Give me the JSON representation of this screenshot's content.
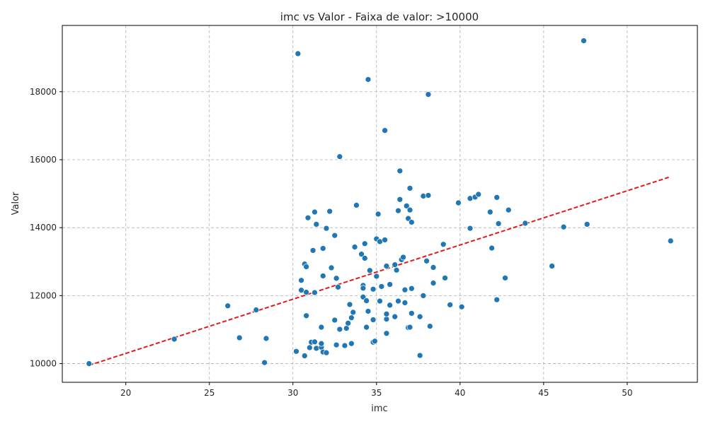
{
  "chart_data": {
    "type": "scatter",
    "title": "imc vs Valor - Faixa de valor: >10000",
    "xlabel": "imc",
    "ylabel": "Valor",
    "xlim": [
      16.2,
      54.2
    ],
    "ylim": [
      9450,
      19950
    ],
    "xticks": [
      20,
      25,
      30,
      35,
      40,
      45,
      50
    ],
    "yticks": [
      10000,
      12000,
      14000,
      16000,
      18000
    ],
    "grid": true,
    "point_color": "#1f77b4",
    "trend_color": "#e31a1c",
    "trendline": {
      "x": [
        17.8,
        52.6
      ],
      "y": [
        9950,
        15500
      ],
      "style": "dashed"
    },
    "points": [
      [
        17.8,
        10000
      ],
      [
        22.9,
        10720
      ],
      [
        26.1,
        11700
      ],
      [
        26.8,
        10760
      ],
      [
        27.8,
        11580
      ],
      [
        28.3,
        10030
      ],
      [
        28.4,
        10740
      ],
      [
        30.2,
        10360
      ],
      [
        30.3,
        19120
      ],
      [
        30.5,
        12450
      ],
      [
        30.5,
        12160
      ],
      [
        30.7,
        12930
      ],
      [
        30.7,
        10230
      ],
      [
        30.8,
        12850
      ],
      [
        30.8,
        11410
      ],
      [
        30.8,
        12100
      ],
      [
        30.9,
        14290
      ],
      [
        31.0,
        10470
      ],
      [
        31.1,
        10630
      ],
      [
        31.2,
        13330
      ],
      [
        31.3,
        14460
      ],
      [
        31.3,
        10640
      ],
      [
        31.3,
        12090
      ],
      [
        31.4,
        14100
      ],
      [
        31.4,
        10450
      ],
      [
        31.7,
        10480
      ],
      [
        31.7,
        11070
      ],
      [
        31.7,
        10590
      ],
      [
        31.8,
        12580
      ],
      [
        31.8,
        13390
      ],
      [
        31.8,
        10340
      ],
      [
        32.0,
        10320
      ],
      [
        32.0,
        13980
      ],
      [
        32.2,
        14480
      ],
      [
        32.3,
        12820
      ],
      [
        32.5,
        13770
      ],
      [
        32.5,
        11280
      ],
      [
        32.6,
        12510
      ],
      [
        32.6,
        10550
      ],
      [
        32.7,
        12250
      ],
      [
        32.8,
        16090
      ],
      [
        32.8,
        11010
      ],
      [
        33.1,
        10530
      ],
      [
        33.2,
        11040
      ],
      [
        33.3,
        11190
      ],
      [
        33.4,
        11740
      ],
      [
        33.5,
        10590
      ],
      [
        33.5,
        11350
      ],
      [
        33.6,
        11510
      ],
      [
        33.7,
        13430
      ],
      [
        33.8,
        14660
      ],
      [
        34.1,
        13220
      ],
      [
        34.2,
        12300
      ],
      [
        34.2,
        12220
      ],
      [
        34.2,
        11960
      ],
      [
        34.3,
        13100
      ],
      [
        34.3,
        13530
      ],
      [
        34.4,
        11850
      ],
      [
        34.4,
        11070
      ],
      [
        34.5,
        11540
      ],
      [
        34.5,
        18360
      ],
      [
        34.6,
        12740
      ],
      [
        34.8,
        12190
      ],
      [
        34.8,
        11290
      ],
      [
        34.8,
        10630
      ],
      [
        34.9,
        10660
      ],
      [
        35.0,
        12570
      ],
      [
        35.0,
        13670
      ],
      [
        35.1,
        14400
      ],
      [
        35.2,
        13590
      ],
      [
        35.2,
        11840
      ],
      [
        35.3,
        12270
      ],
      [
        35.5,
        13640
      ],
      [
        35.5,
        16860
      ],
      [
        35.6,
        12870
      ],
      [
        35.6,
        11310
      ],
      [
        35.6,
        11460
      ],
      [
        35.6,
        10890
      ],
      [
        35.8,
        11720
      ],
      [
        35.8,
        12330
      ],
      [
        36.1,
        12910
      ],
      [
        36.1,
        11380
      ],
      [
        36.2,
        12750
      ],
      [
        36.3,
        11840
      ],
      [
        36.3,
        14500
      ],
      [
        36.4,
        14830
      ],
      [
        36.4,
        15670
      ],
      [
        36.5,
        13060
      ],
      [
        36.6,
        13130
      ],
      [
        36.7,
        12170
      ],
      [
        36.7,
        11790
      ],
      [
        36.8,
        14640
      ],
      [
        36.9,
        14270
      ],
      [
        36.9,
        11060
      ],
      [
        37.0,
        14520
      ],
      [
        37.0,
        15160
      ],
      [
        37.0,
        11070
      ],
      [
        37.1,
        11480
      ],
      [
        37.1,
        12210
      ],
      [
        37.1,
        14160
      ],
      [
        37.6,
        10240
      ],
      [
        37.6,
        11380
      ],
      [
        37.8,
        12000
      ],
      [
        37.8,
        14930
      ],
      [
        38.0,
        13020
      ],
      [
        38.1,
        14950
      ],
      [
        38.1,
        17920
      ],
      [
        38.2,
        11100
      ],
      [
        38.4,
        12830
      ],
      [
        38.4,
        12370
      ],
      [
        39.0,
        13510
      ],
      [
        39.1,
        12520
      ],
      [
        39.4,
        11730
      ],
      [
        39.9,
        14730
      ],
      [
        40.1,
        11670
      ],
      [
        40.6,
        13980
      ],
      [
        40.6,
        14860
      ],
      [
        40.9,
        14900
      ],
      [
        41.1,
        14980
      ],
      [
        41.8,
        14460
      ],
      [
        41.9,
        13400
      ],
      [
        42.2,
        11880
      ],
      [
        42.2,
        14890
      ],
      [
        42.3,
        14120
      ],
      [
        42.7,
        12520
      ],
      [
        42.9,
        14520
      ],
      [
        43.9,
        14130
      ],
      [
        45.5,
        12870
      ],
      [
        46.2,
        14020
      ],
      [
        47.4,
        19500
      ],
      [
        47.6,
        14100
      ],
      [
        52.6,
        13610
      ]
    ]
  }
}
